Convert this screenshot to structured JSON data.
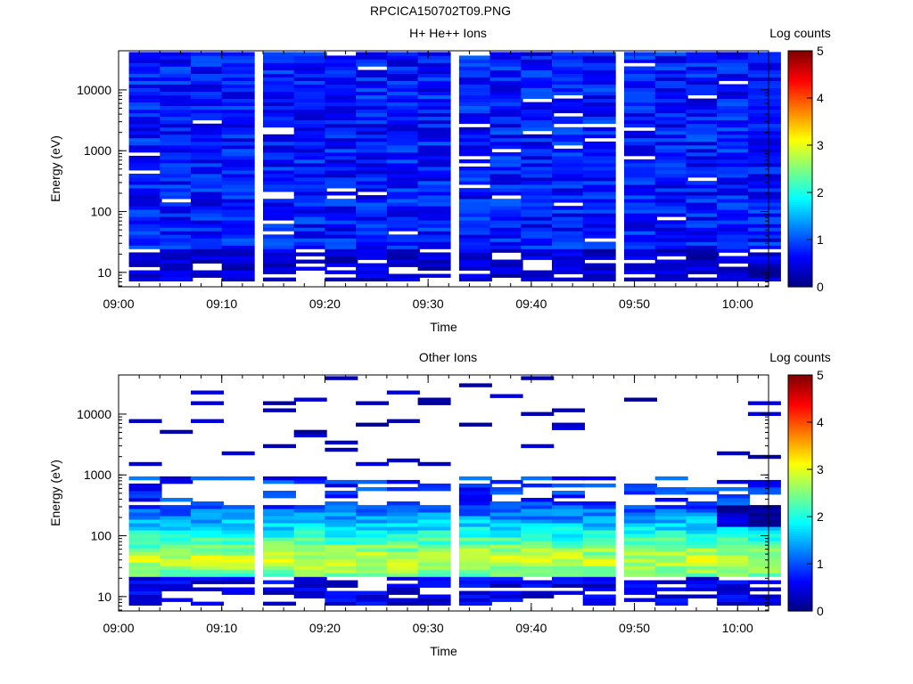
{
  "title": "RPCICA150702T09.PNG",
  "chart_data": [
    {
      "type": "heatmap",
      "title": "H+ He++ Ions",
      "xlabel": "Time",
      "ylabel": "Energy (eV)",
      "yscale": "log",
      "ylim": [
        5.8,
        44000
      ],
      "xlim": [
        "09:00",
        "10:03"
      ],
      "x_ticks": [
        "09:00",
        "09:10",
        "09:20",
        "09:30",
        "09:40",
        "09:50",
        "10:00"
      ],
      "y_ticks": [
        "10",
        "100",
        "1000",
        "10000"
      ],
      "colorbar": {
        "label": "Log counts",
        "range": [
          0,
          5
        ],
        "ticks": [
          "0",
          "1",
          "2",
          "3",
          "4",
          "5"
        ],
        "colormap": "jet"
      },
      "time_bins": [
        "09:01",
        "09:04",
        "09:07",
        "09:10",
        "09:14",
        "09:17",
        "09:20",
        "09:23",
        "09:26",
        "09:29",
        "09:33",
        "09:36",
        "09:39",
        "09:42",
        "09:45",
        "09:49",
        "09:52",
        "09:55",
        "09:58",
        "10:01"
      ],
      "profile": "low_counts_broadband",
      "grid": false
    },
    {
      "type": "heatmap",
      "title": "Other Ions",
      "xlabel": "Time",
      "ylabel": "Energy (eV)",
      "yscale": "log",
      "ylim": [
        5.8,
        44000
      ],
      "xlim": [
        "09:00",
        "10:03"
      ],
      "x_ticks": [
        "09:00",
        "09:10",
        "09:20",
        "09:30",
        "09:40",
        "09:50",
        "10:00"
      ],
      "y_ticks": [
        "10",
        "100",
        "1000",
        "10000"
      ],
      "colorbar": {
        "label": "Log counts",
        "range": [
          0,
          5
        ],
        "ticks": [
          "0",
          "1",
          "2",
          "3",
          "4",
          "5"
        ],
        "colormap": "jet"
      },
      "time_bins": [
        "09:01",
        "09:04",
        "09:07",
        "09:10",
        "09:14",
        "09:17",
        "09:20",
        "09:23",
        "09:26",
        "09:29",
        "09:33",
        "09:36",
        "09:39",
        "09:42",
        "09:45",
        "09:49",
        "09:52",
        "09:55",
        "09:58",
        "10:01"
      ],
      "profile": "peak_near_40eV_sparse_high",
      "grid": false
    }
  ]
}
